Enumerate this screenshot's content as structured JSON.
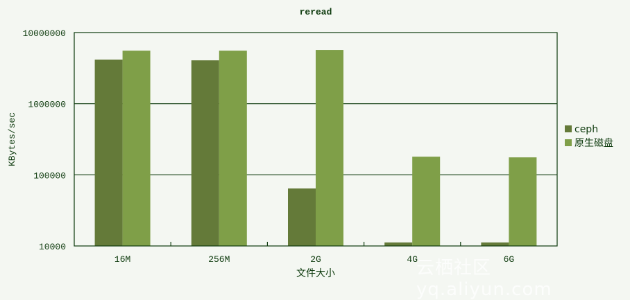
{
  "chart_data": {
    "type": "bar",
    "title": "reread",
    "xlabel": "文件大小",
    "ylabel": "KBytes/sec",
    "yscale": "log",
    "ylim": [
      10000,
      10000000
    ],
    "yticks": [
      "10000",
      "100000",
      "1000000",
      "10000000"
    ],
    "categories": [
      "16M",
      "256M",
      "2G",
      "4G",
      "6G"
    ],
    "series": [
      {
        "name": "ceph",
        "color": "#647a39",
        "values": [
          4170000,
          4070000,
          64300,
          11200,
          11200
        ]
      },
      {
        "name": "原生磁盘",
        "color": "#7f9f48",
        "values": [
          5570000,
          5570000,
          5700000,
          180000,
          176000
        ]
      }
    ],
    "grid": "horizontal major",
    "legend": "right"
  },
  "watermark": "云栖社区 yq.aliyun.com"
}
